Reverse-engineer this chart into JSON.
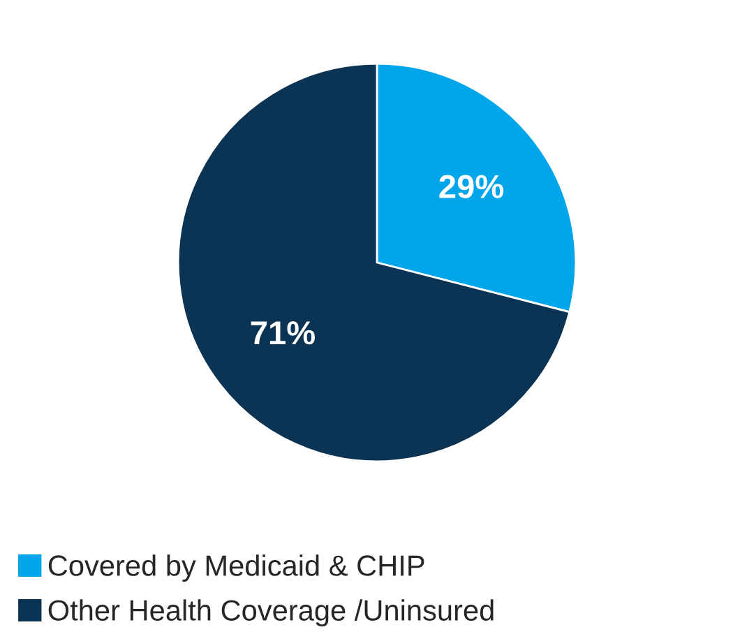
{
  "chart_data": {
    "type": "pie",
    "categories": [
      "Covered by Medicaid & CHIP",
      "Other Health Coverage /Uninsured"
    ],
    "values": [
      29,
      71
    ],
    "colors": [
      "#00a5ea",
      "#0b3454"
    ],
    "value_labels": [
      "29%",
      "71%"
    ],
    "legend": "bottom"
  }
}
